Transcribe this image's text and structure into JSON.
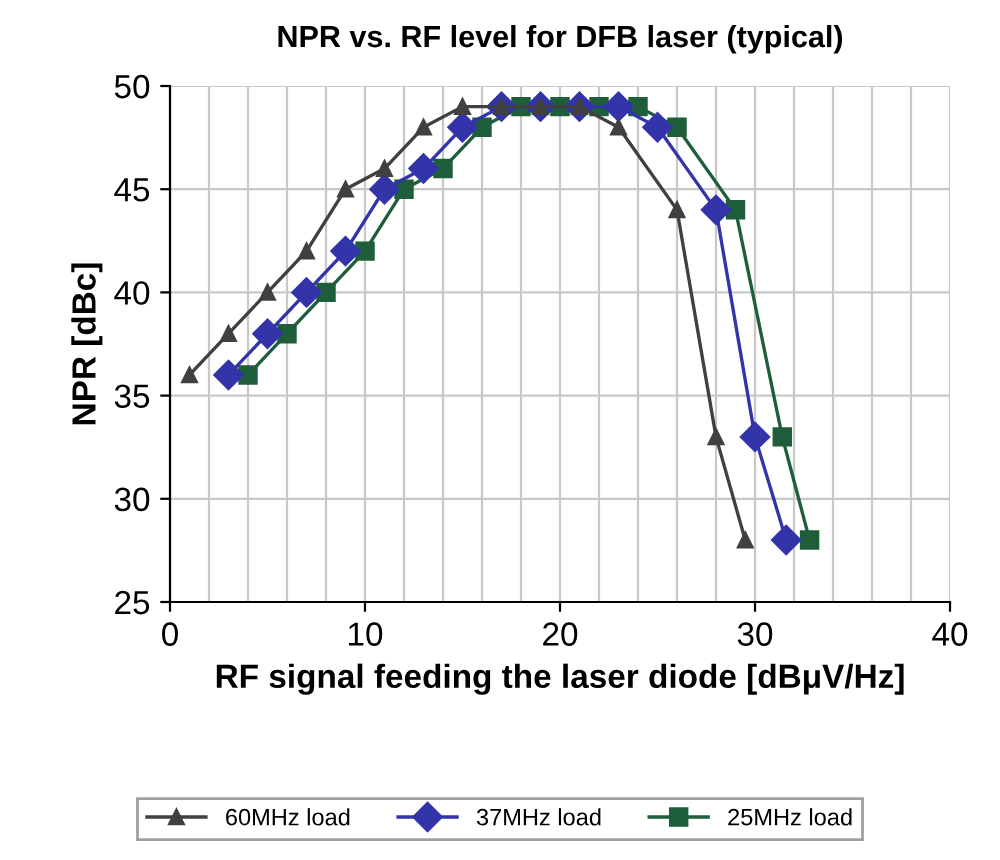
{
  "chart_data": {
    "type": "line",
    "title": "NPR vs. RF level for DFB laser (typical)",
    "xlabel": "RF signal feeding the laser diode [dBμV/Hz]",
    "ylabel": "NPR [dBc]",
    "xlim": [
      0,
      40
    ],
    "xticks": [
      0,
      10,
      20,
      30,
      40
    ],
    "ylim": [
      25,
      50
    ],
    "yticks": [
      25,
      30,
      35,
      40,
      45,
      50
    ],
    "grid": true,
    "legend": "bottom",
    "series": [
      {
        "name": "60MHz load",
        "color": "#404040",
        "marker": "triangle",
        "x": [
          1,
          3,
          5,
          7,
          9,
          11,
          13,
          15,
          17,
          19,
          21,
          23,
          26,
          28,
          29.5
        ],
        "values": [
          36,
          38,
          40,
          42,
          45,
          46,
          48,
          49,
          49,
          49,
          49,
          48,
          44,
          33,
          28
        ]
      },
      {
        "name": "37MHz load",
        "color": "#3333aa",
        "marker": "diamond",
        "x": [
          3,
          5,
          7,
          9,
          11,
          13,
          15,
          17,
          19,
          21,
          23,
          25,
          28,
          30,
          31.6
        ],
        "values": [
          36,
          38,
          40,
          42,
          45,
          46,
          48,
          49,
          49,
          49,
          49,
          48,
          44,
          33,
          28
        ]
      },
      {
        "name": "25MHz load",
        "color": "#1e5e3a",
        "marker": "square",
        "x": [
          4,
          6,
          8,
          10,
          12,
          14,
          16,
          18,
          20,
          22,
          24,
          26,
          29,
          31.4,
          32.8
        ],
        "values": [
          36,
          38,
          40,
          42,
          45,
          46,
          48,
          49,
          49,
          49,
          49,
          48,
          44,
          33,
          28
        ]
      }
    ]
  }
}
